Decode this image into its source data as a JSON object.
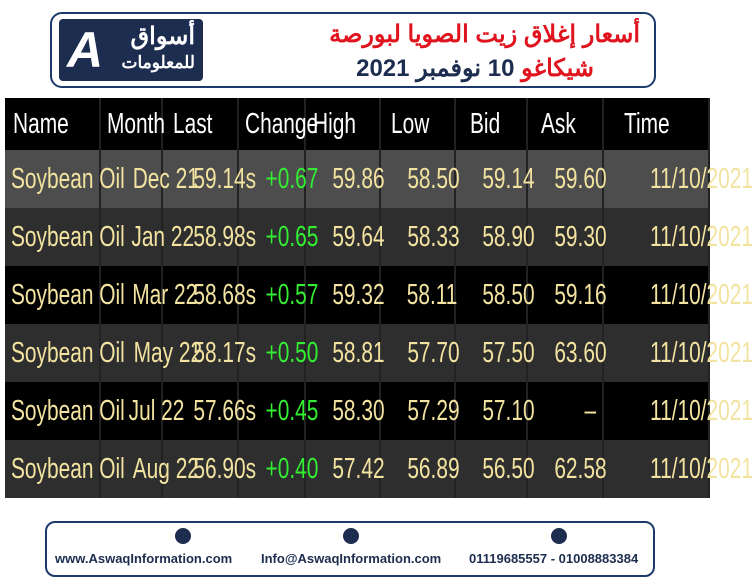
{
  "header": {
    "logo": {
      "name": "أسواق",
      "sub": "للمعلومات"
    },
    "title_line1": "أسعار إغلاق زيت الصويا لبورصة",
    "title_line2_red": "شيكاغو",
    "title_line2_dark": "10 نوفمبر 2021"
  },
  "table": {
    "columns": [
      "Name",
      "Month",
      "Last",
      "Change",
      "High",
      "Low",
      "Bid",
      "Ask",
      "Time"
    ],
    "rows": [
      [
        "Soybean Oil",
        "Dec 21",
        "59.14s",
        "+0.67",
        "59.86",
        "58.50",
        "59.14",
        "59.60",
        "11/10/2021"
      ],
      [
        "Soybean Oil",
        "Jan 22",
        "58.98s",
        "+0.65",
        "59.64",
        "58.33",
        "58.90",
        "59.30",
        "11/10/2021"
      ],
      [
        "Soybean Oil",
        "Mar 22",
        "58.68s",
        "+0.57",
        "59.32",
        "58.11",
        "58.50",
        "59.16",
        "11/10/2021"
      ],
      [
        "Soybean Oil",
        "May 22",
        "58.17s",
        "+0.50",
        "58.81",
        "57.70",
        "57.50",
        "63.60",
        "11/10/2021"
      ],
      [
        "Soybean Oil",
        "Jul 22",
        "57.66s",
        "+0.45",
        "58.30",
        "57.29",
        "57.10",
        "–",
        "11/10/2021"
      ],
      [
        "Soybean Oil",
        "Aug 22",
        "56.90s",
        "+0.40",
        "57.42",
        "56.89",
        "56.50",
        "62.58",
        "11/10/2021"
      ]
    ]
  },
  "footer": {
    "website": "www.AswaqInformation.com",
    "email": "Info@AswaqInformation.com",
    "phone": "01119685557 - 01008883384"
  }
}
